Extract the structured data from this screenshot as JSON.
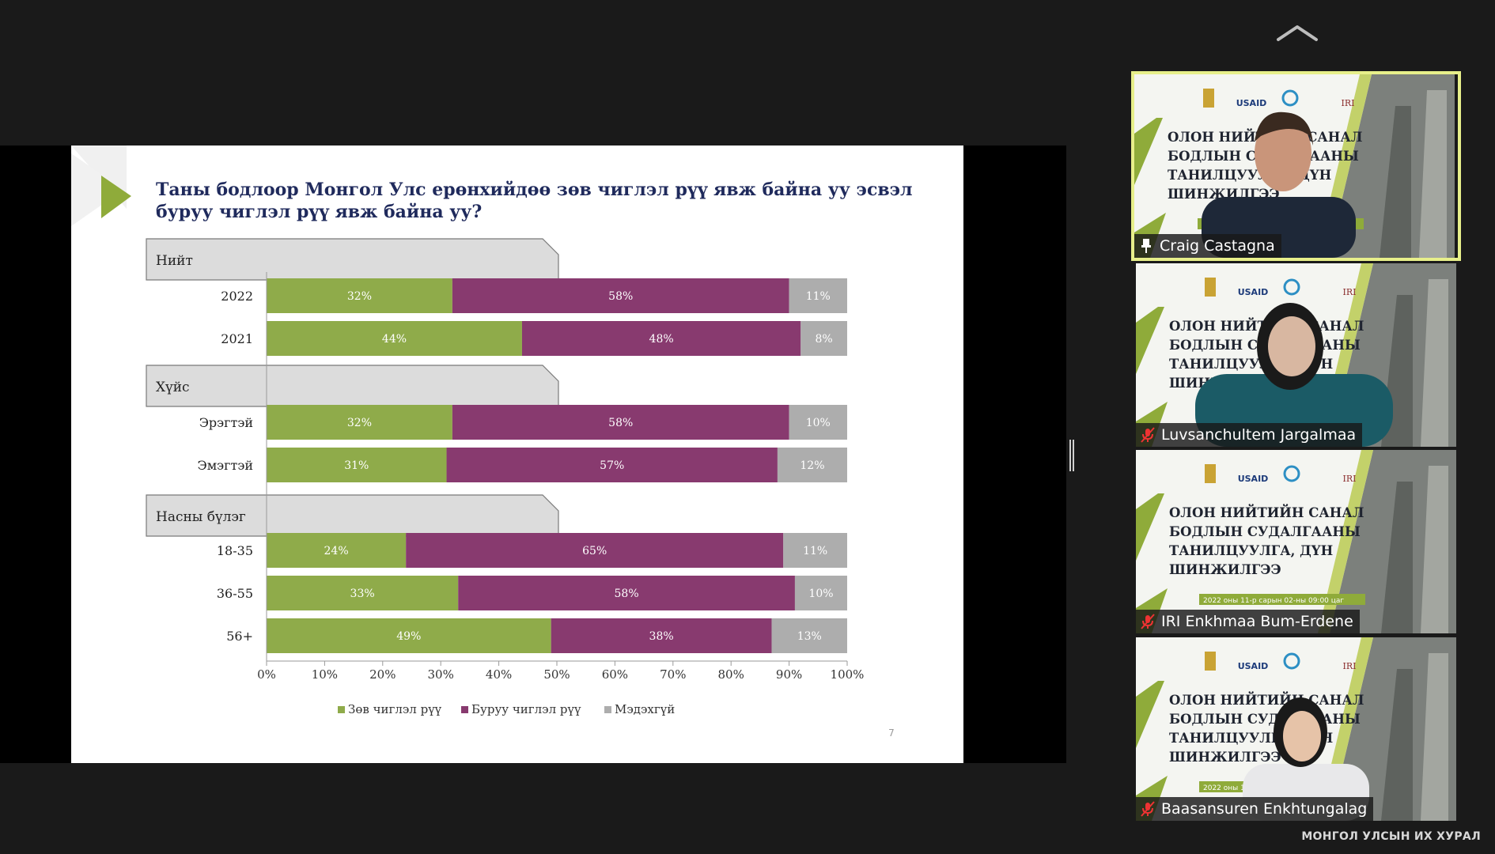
{
  "slide": {
    "title": "Таны бодлоор Монгол Улс ерөнхийдөө зөв чиглэл рүү явж байна уу эсвэл буруу чиглэл рүү явж байна уу?",
    "page_number": "7"
  },
  "colors": {
    "correct": "#8fab4a",
    "wrong": "#883a6f",
    "unknown": "#adadad",
    "title": "#1f2a5c",
    "accent": "#8fab3a"
  },
  "chart_data": {
    "type": "bar",
    "orientation": "horizontal",
    "stacked": true,
    "groups": [
      {
        "label": "Нийт",
        "rows": [
          {
            "label": "2022",
            "values": [
              32,
              58,
              11
            ]
          },
          {
            "label": "2021",
            "values": [
              44,
              48,
              8
            ]
          }
        ]
      },
      {
        "label": "Хүйс",
        "rows": [
          {
            "label": "Эрэгтэй",
            "values": [
              32,
              58,
              10
            ]
          },
          {
            "label": "Эмэгтэй",
            "values": [
              31,
              57,
              12
            ]
          }
        ]
      },
      {
        "label": "Насны бүлэг",
        "rows": [
          {
            "label": "18-35",
            "values": [
              24,
              65,
              11
            ]
          },
          {
            "label": "36-55",
            "values": [
              33,
              58,
              10
            ]
          },
          {
            "label": "56+",
            "values": [
              49,
              38,
              13
            ]
          }
        ]
      }
    ],
    "series": [
      {
        "name": "Зөв чиглэл рүү",
        "color": "#8fab4a"
      },
      {
        "name": "Буруу чиглэл рүү",
        "color": "#883a6f"
      },
      {
        "name": "Мэдэхгүй",
        "color": "#adadad"
      }
    ],
    "x_ticks": [
      "0%",
      "10%",
      "20%",
      "30%",
      "40%",
      "50%",
      "60%",
      "70%",
      "80%",
      "90%",
      "100%"
    ],
    "xlim": [
      0,
      100
    ],
    "legend": "bottom"
  },
  "participants": [
    {
      "name": "Craig Castagna",
      "status_icon": "pin-icon",
      "active": true
    },
    {
      "name": "Luvsanchultem Jargalmaa",
      "status_icon": "mic-muted-icon",
      "active": false
    },
    {
      "name": "IRI Enkhmaa Bum-Erdene",
      "status_icon": "mic-muted-icon",
      "active": false
    },
    {
      "name": "Baasansuren Enkhtungalag",
      "status_icon": "mic-muted-icon",
      "active": false
    }
  ],
  "banner": {
    "lines": [
      "ОЛОН НИЙТИЙН САНАЛ",
      "БОДЛЫН СУДАЛГААНЫ",
      "ТАНИЛЦУУЛГА, ДҮН",
      "ШИНЖИЛГЭЭ"
    ],
    "partner_logo": "USAID",
    "partner_logo_2": "IRI",
    "date_line": "2022 оны 11-р сарын 02-ны 09:00 цаг"
  },
  "footer": {
    "watermark": "МОНГОЛ УЛСЫН ИХ ХУРАЛ"
  }
}
